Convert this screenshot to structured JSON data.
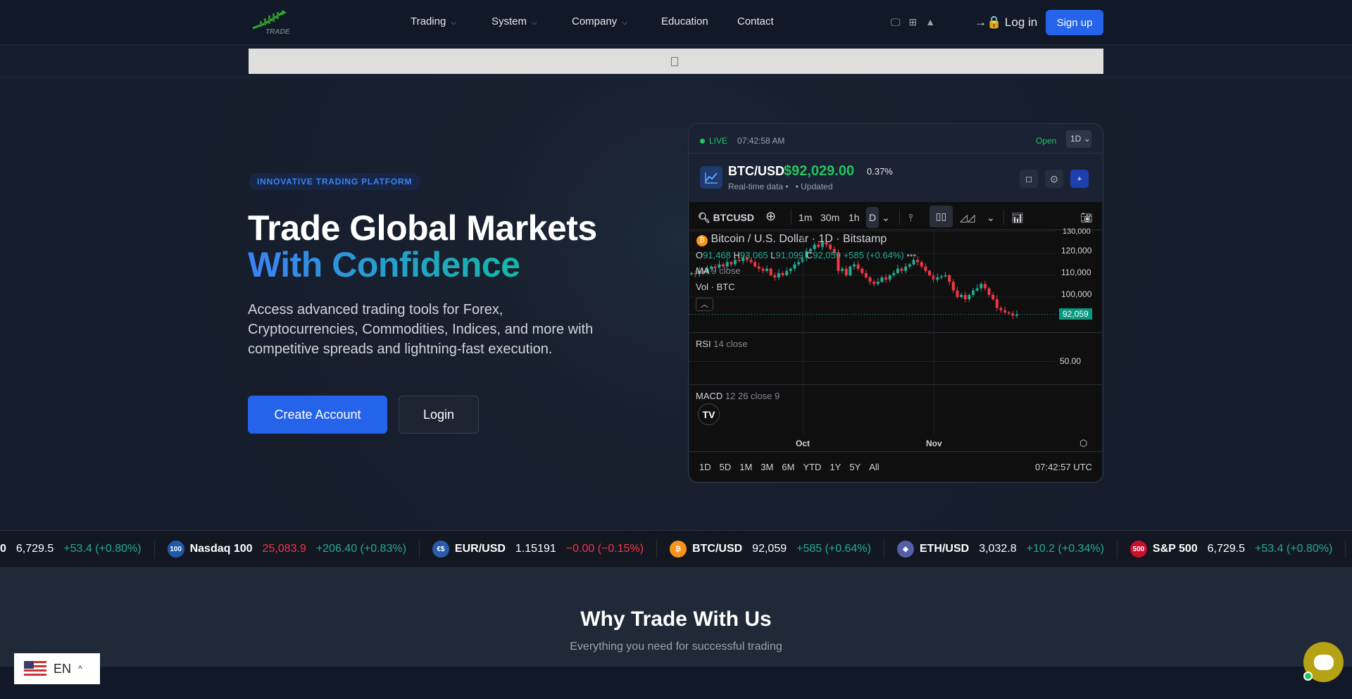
{
  "nav": {
    "logo_text": "TRADE",
    "items": [
      {
        "label": "Trading",
        "dropdown": true
      },
      {
        "label": "System",
        "dropdown": true
      },
      {
        "label": "Company",
        "dropdown": true
      },
      {
        "label": "Education",
        "dropdown": false
      },
      {
        "label": "Contact",
        "dropdown": false
      }
    ],
    "platform_icons": [
      "desktop-icon",
      "windows-icon",
      "android-icon",
      "apple-icon"
    ],
    "login_label": "Log in",
    "signup_label": "Sign up"
  },
  "hero": {
    "badge": "INNOVATIVE TRADING PLATFORM",
    "title_line1": "Trade Global Markets",
    "title_line2": "With Confidence",
    "description": "Access advanced trading tools for Forex, Cryptocurrencies, Commodities, Indices, and more with competitive spreads and lightning-fast execution.",
    "create_account": "Create Account",
    "login": "Login"
  },
  "widget": {
    "live": "LIVE",
    "time": "07:42:58 AM",
    "market_status": "Open",
    "interval_select": "1D",
    "pair": "BTC/USD",
    "price": "$92,029.00",
    "change": "0.37%",
    "subtitle": "Real-time data •",
    "updated": "• Updated",
    "toolbar": {
      "symbol": "BTCUSD",
      "intervals": [
        "1m",
        "30m",
        "1h",
        "D"
      ]
    },
    "legend": {
      "title": "Bitcoin / U.S. Dollar · 1D · Bitstamp",
      "o_label": "O",
      "o": "91,468",
      "h_label": "H",
      "h": "93,065",
      "l_label": "L",
      "l": "91,099",
      "c_label": "C",
      "c": "92,059",
      "chg": "+585 (+0.64%)",
      "ma": "MA",
      "ma_params": "9 close",
      "vol": "Vol · BTC"
    },
    "price_axis": [
      "130,000",
      "120,000",
      "110,000",
      "100,000"
    ],
    "last_price": "92,059",
    "rsi": {
      "label": "RSI",
      "params": "14 close",
      "level": "50.00"
    },
    "macd": {
      "label": "MACD",
      "params": "12 26 close 9"
    },
    "time_axis": [
      "Oct",
      "Nov"
    ],
    "ranges": [
      "1D",
      "5D",
      "1M",
      "3M",
      "6M",
      "YTD",
      "1Y",
      "5Y",
      "All"
    ],
    "utc_time": "07:42:57 UTC",
    "closes_k": [
      111,
      110.5,
      112,
      111,
      113,
      114,
      113.5,
      115,
      114,
      116,
      115,
      117,
      116.5,
      118,
      117,
      116,
      114,
      113,
      112,
      113,
      110,
      109,
      111,
      110,
      112,
      113,
      115,
      116,
      118,
      121,
      122,
      124,
      123,
      125,
      124,
      122,
      120,
      112,
      113,
      110,
      114,
      115,
      113,
      111,
      109,
      107,
      106,
      107,
      109,
      108,
      110,
      111,
      113,
      112,
      114,
      115,
      117,
      116,
      114,
      112,
      110,
      108,
      109,
      109.5,
      110,
      107,
      103,
      100,
      101,
      99,
      101,
      103,
      104,
      106,
      104,
      101,
      99,
      95,
      94,
      93,
      92.5,
      91.5,
      92.06
    ],
    "colors": {
      "up": "#22ab94",
      "down": "#f23645"
    }
  },
  "ticker": [
    {
      "symbol": "0",
      "icon": "",
      "price": "6,729.5",
      "change": "+53.4 (+0.80%)",
      "dir": "up"
    },
    {
      "symbol": "Nasdaq 100",
      "icon": "100",
      "icon_color": "#1e5aa8",
      "price": "25,083.9",
      "price_dir": "dn",
      "change": "+206.40 (+0.83%)",
      "dir": "up"
    },
    {
      "symbol": "EUR/USD",
      "icon": "€$",
      "icon_color": "#2a5caa",
      "price": "1.15191",
      "change": "−0.00 (−0.15%)",
      "dir": "dn"
    },
    {
      "symbol": "BTC/USD",
      "icon": "₿",
      "icon_color": "#f7931a",
      "price": "92,059",
      "change": "+585 (+0.64%)",
      "dir": "up"
    },
    {
      "symbol": "ETH/USD",
      "icon": "◆",
      "icon_color": "#5560a8",
      "price": "3,032.8",
      "change": "+10.2 (+0.34%)",
      "dir": "up"
    },
    {
      "symbol": "S&P 500",
      "icon": "500",
      "icon_color": "#c8102e",
      "price": "6,729.5",
      "change": "+53.4 (+0.80%)",
      "dir": "up"
    }
  ],
  "why": {
    "title": "Why Trade With Us",
    "subtitle": "Everything you need for successful trading"
  },
  "language": {
    "code": "EN"
  }
}
